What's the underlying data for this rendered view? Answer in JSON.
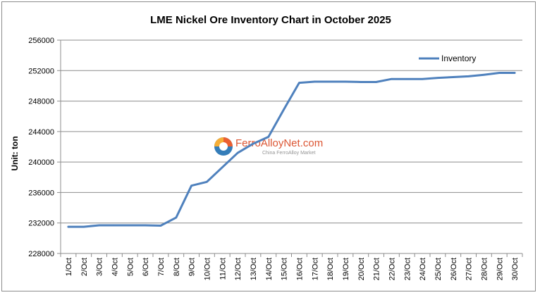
{
  "chart_data": {
    "type": "line",
    "title": "LME Nickel Ore Inventory Chart in October 2025",
    "ylabel": "Unit: ton",
    "xlabel": "",
    "ylim": [
      228000,
      256000
    ],
    "yticks": [
      "228000",
      "232000",
      "236000",
      "240000",
      "244000",
      "248000",
      "252000",
      "256000"
    ],
    "grid": "horizontal",
    "legend_position": "top-right",
    "categories": [
      "1/Oct",
      "2/Oct",
      "3/Oct",
      "4/Oct",
      "5/Oct",
      "6/Oct",
      "7/Oct",
      "8/Oct",
      "9/Oct",
      "10/Oct",
      "11/Oct",
      "12/Oct",
      "13/Oct",
      "14/Oct",
      "15/Oct",
      "16/Oct",
      "17/Oct",
      "18/Oct",
      "19/Oct",
      "20/Oct",
      "21/Oct",
      "22/Oct",
      "23/Oct",
      "24/Oct",
      "25/Oct",
      "26/Oct",
      "27/Oct",
      "28/Oct",
      "29/Oct",
      "30/Oct"
    ],
    "series": [
      {
        "name": "Inventory",
        "color": "#4f81bd",
        "values": [
          231500,
          231500,
          231700,
          231700,
          231700,
          231700,
          231650,
          232700,
          236900,
          237400,
          239300,
          241200,
          242400,
          243300,
          246900,
          250400,
          250550,
          250550,
          250550,
          250500,
          250500,
          250900,
          250900,
          250900,
          251050,
          251150,
          251250,
          251450,
          251700,
          251700
        ]
      }
    ]
  },
  "watermark": {
    "brand": "FerroAlloyNet.com",
    "subtitle": "China FerroAlloy Market",
    "colors": [
      "#e94e1b",
      "#f5a623",
      "#1f6fb2"
    ]
  }
}
